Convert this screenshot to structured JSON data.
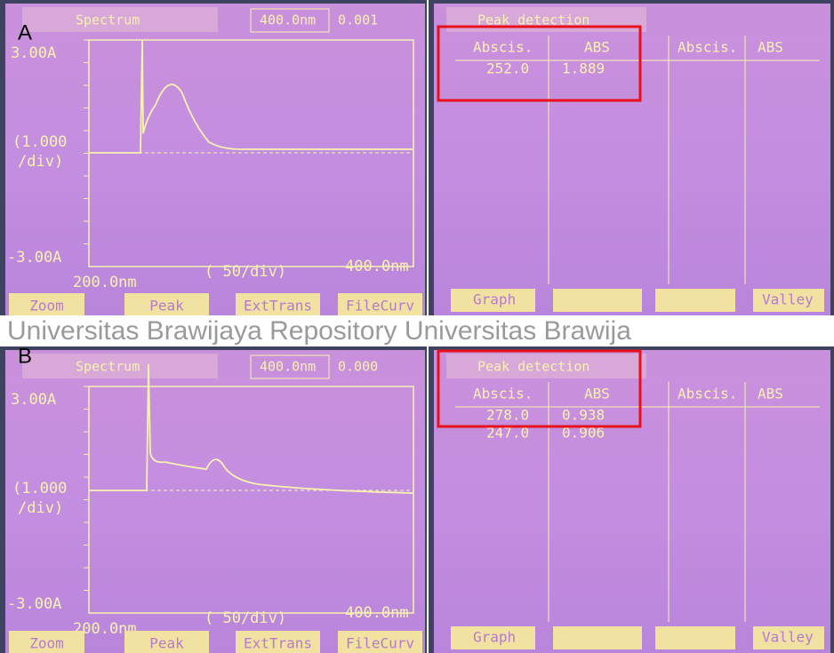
{
  "watermark": "Universitas Brawijaya    Repository Universitas Brawija",
  "panels": [
    {
      "label": "A",
      "spectrum": {
        "title": "Spectrum",
        "wavelength": "400.0nm",
        "reading": "0.001",
        "y_max": "3.00A",
        "y_scale": "(1.000",
        "y_scale_unit": "/div)",
        "y_min": "-3.00A",
        "x_start": "200.0nm",
        "x_scale": "(  50/div)",
        "x_end": "400.0nm",
        "buttons": [
          "Zoom",
          "Peak",
          "ExtTrans",
          "FileCurv"
        ]
      },
      "peaks": {
        "title": "Peak detection",
        "columns": [
          "Abscis.",
          "ABS"
        ],
        "rows": [
          [
            "252.0",
            "1.889"
          ]
        ],
        "columns_2": [
          "Abscis.",
          "ABS"
        ],
        "buttons": [
          "Graph",
          "Valley"
        ]
      }
    },
    {
      "label": "B",
      "spectrum": {
        "title": "Spectrum",
        "wavelength": "400.0nm",
        "reading": "0.000",
        "y_max": "3.00A",
        "y_scale": "(1.000",
        "y_scale_unit": "/div)",
        "y_min": "-3.00A",
        "x_start": "200.0nm",
        "x_scale": "(  50/div)",
        "x_end": "400.0nm",
        "buttons": [
          "Zoom",
          "Peak",
          "ExtTrans",
          "FileCurv"
        ]
      },
      "peaks": {
        "title": "Peak detection",
        "columns": [
          "Abscis.",
          "ABS"
        ],
        "rows": [
          [
            "278.0",
            "0.938"
          ],
          [
            "247.0",
            "0.906"
          ]
        ],
        "columns_2": [
          "Abscis.",
          "ABS"
        ],
        "buttons": [
          "Graph",
          "Valley"
        ]
      }
    }
  ]
}
